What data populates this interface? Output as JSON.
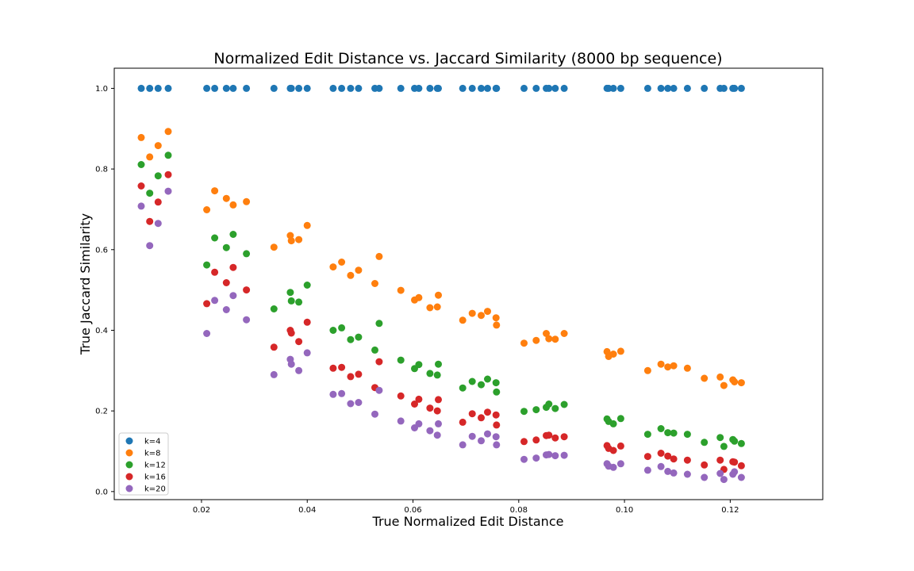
{
  "chart_data": {
    "type": "scatter",
    "title": "Normalized Edit Distance vs. Jaccard Similarity (8000 bp sequence)",
    "xlabel": "True Normalized Edit Distance",
    "ylabel": "True Jaccard Similarity",
    "xlim": [
      0.0035,
      0.1375
    ],
    "ylim": [
      -0.02,
      1.05
    ],
    "xticks": [
      0.02,
      0.04,
      0.06,
      0.08,
      0.1,
      0.12
    ],
    "xtick_labels": [
      "0.02",
      "0.04",
      "0.06",
      "0.08",
      "0.10",
      "0.12"
    ],
    "yticks": [
      0.0,
      0.2,
      0.4,
      0.6,
      0.8,
      1.0
    ],
    "ytick_labels": [
      "0.0",
      "0.2",
      "0.4",
      "0.6",
      "0.8",
      "1.0"
    ],
    "grid": false,
    "legend_position": "lower-left",
    "x": [
      0.0086,
      0.0102,
      0.0118,
      0.0137,
      0.021,
      0.0225,
      0.0247,
      0.026,
      0.0285,
      0.0337,
      0.0368,
      0.037,
      0.0384,
      0.04,
      0.0449,
      0.0465,
      0.0482,
      0.0497,
      0.0528,
      0.0536,
      0.0577,
      0.0603,
      0.0611,
      0.0632,
      0.0646,
      0.0648,
      0.0694,
      0.0712,
      0.0729,
      0.0741,
      0.0757,
      0.0758,
      0.081,
      0.0833,
      0.0852,
      0.0857,
      0.0869,
      0.0886,
      0.0967,
      0.097,
      0.0979,
      0.0993,
      0.1044,
      0.1069,
      0.1082,
      0.1093,
      0.1119,
      0.1151,
      0.1181,
      0.1188,
      0.1205,
      0.1208,
      0.1221
    ],
    "series": [
      {
        "name": "k=4",
        "color": "#1f77b4",
        "values": [
          1,
          1,
          1,
          1,
          1,
          1,
          1,
          1,
          1,
          1,
          1,
          1,
          1,
          1,
          1,
          1,
          1,
          1,
          1,
          1,
          1,
          1,
          1,
          1,
          1,
          1,
          1,
          1,
          1,
          1,
          1,
          1,
          1,
          1,
          1,
          1,
          1,
          1,
          1,
          1,
          1,
          1,
          1,
          1,
          1,
          1,
          1,
          1,
          1,
          1,
          1,
          1,
          1
        ]
      },
      {
        "name": "k=8",
        "color": "#ff7f0e",
        "values": [
          0.878,
          0.83,
          0.858,
          0.893,
          0.699,
          0.746,
          0.727,
          0.711,
          0.719,
          0.606,
          0.635,
          0.622,
          0.625,
          0.66,
          0.557,
          0.569,
          0.536,
          0.549,
          0.516,
          0.583,
          0.499,
          0.475,
          0.481,
          0.456,
          0.458,
          0.487,
          0.425,
          0.442,
          0.437,
          0.447,
          0.431,
          0.413,
          0.368,
          0.375,
          0.392,
          0.379,
          0.378,
          0.392,
          0.347,
          0.335,
          0.341,
          0.348,
          0.3,
          0.316,
          0.309,
          0.312,
          0.306,
          0.281,
          0.284,
          0.263,
          0.277,
          0.272,
          0.27
        ]
      },
      {
        "name": "k=12",
        "color": "#2ca02c",
        "values": [
          0.811,
          0.74,
          0.783,
          0.834,
          0.562,
          0.629,
          0.605,
          0.638,
          0.59,
          0.453,
          0.494,
          0.473,
          0.47,
          0.512,
          0.4,
          0.406,
          0.377,
          0.383,
          0.351,
          0.417,
          0.326,
          0.305,
          0.315,
          0.293,
          0.289,
          0.316,
          0.257,
          0.273,
          0.265,
          0.279,
          0.27,
          0.247,
          0.199,
          0.203,
          0.209,
          0.217,
          0.206,
          0.216,
          0.18,
          0.174,
          0.168,
          0.181,
          0.142,
          0.156,
          0.146,
          0.145,
          0.142,
          0.122,
          0.134,
          0.112,
          0.129,
          0.125,
          0.119
        ]
      },
      {
        "name": "k=16",
        "color": "#d62728",
        "values": [
          0.758,
          0.67,
          0.718,
          0.786,
          0.466,
          0.544,
          0.518,
          0.556,
          0.5,
          0.358,
          0.4,
          0.393,
          0.372,
          0.42,
          0.306,
          0.308,
          0.285,
          0.291,
          0.258,
          0.322,
          0.237,
          0.217,
          0.229,
          0.207,
          0.2,
          0.228,
          0.172,
          0.193,
          0.183,
          0.197,
          0.19,
          0.165,
          0.124,
          0.128,
          0.139,
          0.14,
          0.133,
          0.136,
          0.114,
          0.107,
          0.102,
          0.113,
          0.087,
          0.095,
          0.088,
          0.081,
          0.078,
          0.066,
          0.078,
          0.055,
          0.074,
          0.073,
          0.064
        ]
      },
      {
        "name": "k=20",
        "color": "#9467bd",
        "values": [
          0.708,
          0.61,
          0.665,
          0.745,
          0.392,
          0.474,
          0.451,
          0.486,
          0.426,
          0.29,
          0.328,
          0.316,
          0.3,
          0.344,
          0.241,
          0.243,
          0.218,
          0.221,
          0.192,
          0.251,
          0.175,
          0.158,
          0.168,
          0.151,
          0.14,
          0.168,
          0.116,
          0.137,
          0.126,
          0.143,
          0.136,
          0.116,
          0.08,
          0.083,
          0.091,
          0.092,
          0.089,
          0.09,
          0.069,
          0.063,
          0.06,
          0.069,
          0.053,
          0.062,
          0.05,
          0.046,
          0.043,
          0.035,
          0.045,
          0.03,
          0.043,
          0.049,
          0.035
        ]
      }
    ]
  }
}
